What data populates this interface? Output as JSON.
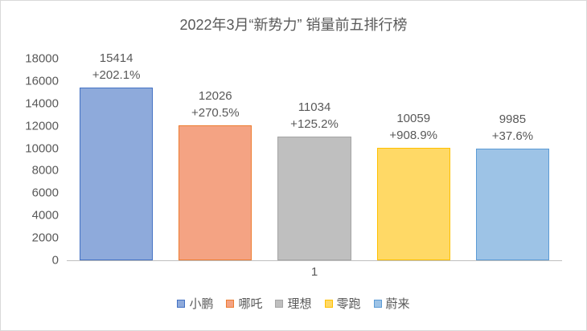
{
  "title": "2022年3月“新势力” 销量前五排行榜",
  "chart_data": {
    "type": "bar",
    "categories": [
      "小鹏",
      "哪吒",
      "理想",
      "零跑",
      "蔚来"
    ],
    "values": [
      15414,
      12026,
      11034,
      10059,
      9985
    ],
    "growth_labels": [
      "+202.1%",
      "+270.5%",
      "+125.2%",
      "+908.9%",
      "+37.6%"
    ],
    "colors": [
      {
        "fill": "#8EAADB",
        "border": "#4472C4"
      },
      {
        "fill": "#F4A383",
        "border": "#ED7D31"
      },
      {
        "fill": "#BFBFBF",
        "border": "#A5A5A5"
      },
      {
        "fill": "#FFD966",
        "border": "#FFC000"
      },
      {
        "fill": "#9DC3E6",
        "border": "#5B9BD5"
      }
    ],
    "ylim": [
      0,
      18000
    ],
    "ytick_step": 2000,
    "xtick_label": "1",
    "legend_entries": [
      "小鹏",
      "哪吒",
      "理想",
      "零跑",
      "蔚来"
    ],
    "legend_position": "bottom",
    "grid": false,
    "text_color": "#595959",
    "axis_line_color": "#BFBFBF"
  }
}
